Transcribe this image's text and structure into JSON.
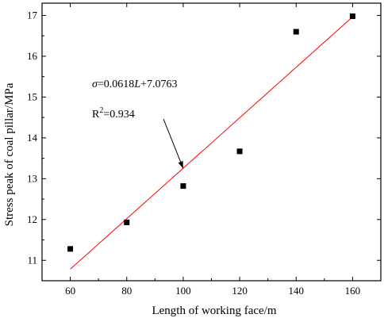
{
  "chart_data": {
    "type": "scatter",
    "title": "",
    "xlabel": "Length of working face/m",
    "ylabel": "Stress peak of coal pillar/MPa",
    "xlim": [
      50,
      170
    ],
    "ylim": [
      10.5,
      17.3
    ],
    "xticks": [
      60,
      80,
      100,
      120,
      140,
      160
    ],
    "yticks": [
      11,
      12,
      13,
      14,
      15,
      16,
      17
    ],
    "grid": false,
    "series": [
      {
        "points": [
          {
            "x": 60,
            "y": 11.28
          },
          {
            "x": 80,
            "y": 11.93
          },
          {
            "x": 100,
            "y": 12.82
          },
          {
            "x": 120,
            "y": 13.67
          },
          {
            "x": 140,
            "y": 16.6
          },
          {
            "x": 160,
            "y": 16.98
          }
        ],
        "marker_color": "#000000"
      }
    ],
    "fit": {
      "slope": 0.0618,
      "intercept": 7.0763,
      "x_range": [
        60,
        160
      ],
      "color": "#ff0000"
    },
    "annotation": {
      "sigma": "σ",
      "equation_rest": "=0.0618",
      "var_l": "L",
      "equation_tail": "+7.0763",
      "r2_prefix": "R",
      "r2_sup": "2",
      "r2_value": "=0.934",
      "arrow_target": {
        "x": 100,
        "y": 13.25
      }
    }
  }
}
